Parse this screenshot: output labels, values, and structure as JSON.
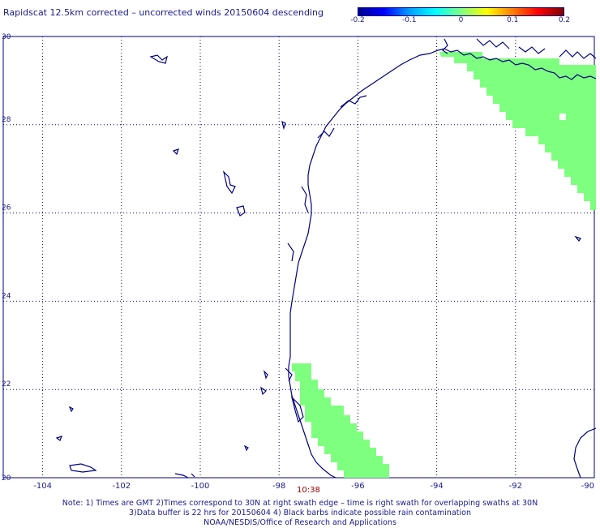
{
  "title": "Rapidscat 12.5km corrected – uncorrected winds 20150604 descending",
  "colorbar": {
    "ticks": [
      "-0.2",
      "-0.1",
      "0",
      "0.1",
      "0.2"
    ],
    "colors": [
      "#00008f",
      "#0000ff",
      "#00a0ff",
      "#00ffff",
      "#80ff80",
      "#ffff00",
      "#ff8000",
      "#ff0000",
      "#800000"
    ]
  },
  "map": {
    "lon_range": [
      -105,
      -90
    ],
    "lat_range": [
      20,
      30
    ],
    "lon_ticks": [
      "-104",
      "-102",
      "-100",
      "-98",
      "-96",
      "-94",
      "-92",
      "-90"
    ],
    "lat_ticks": [
      "30",
      "28",
      "26",
      "24",
      "22",
      "20"
    ],
    "swath_color": "#7fff7f",
    "coast_color": "#00007f"
  },
  "time_label": "10:38",
  "notes": [
    "Note: 1) Times are GMT 2)Times correspond to 30N at right swath edge – time is right swath for overlapping swaths at 30N",
    "3)Data buffer is 22 hrs for 20150604 4) Black barbs indicate possible rain contamination",
    "NOAA/NESDIS/Office of Research and Applications"
  ]
}
